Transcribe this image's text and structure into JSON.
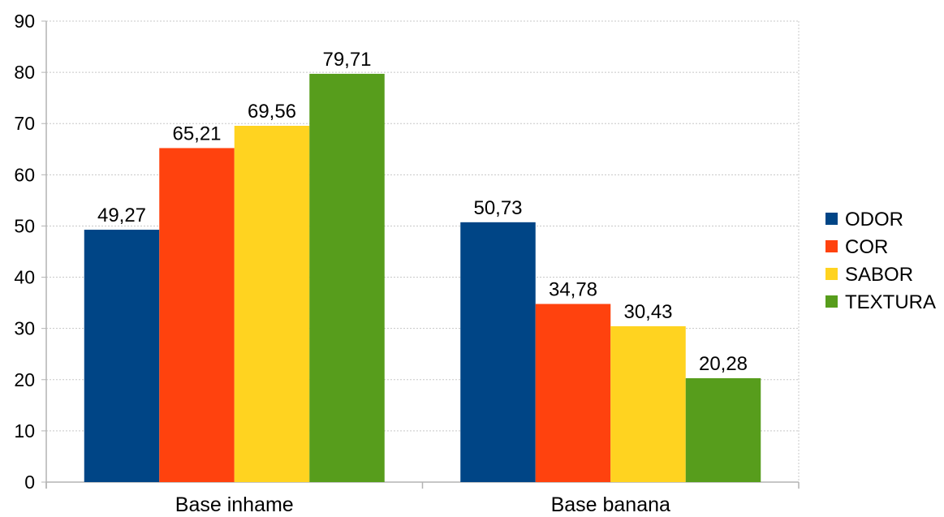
{
  "chart_data": {
    "type": "bar",
    "categories": [
      "Base inhame",
      "Base banana"
    ],
    "series": [
      {
        "name": "ODOR",
        "values": [
          49.27,
          50.73
        ],
        "labels": [
          "49,27",
          "50,73"
        ],
        "color": "#004586"
      },
      {
        "name": "COR",
        "values": [
          65.21,
          34.78
        ],
        "labels": [
          "65,21",
          "34,78"
        ],
        "color": "#ff420e"
      },
      {
        "name": "SABOR",
        "values": [
          69.56,
          30.43
        ],
        "labels": [
          "69,56",
          "30,43"
        ],
        "color": "#ffd320"
      },
      {
        "name": "TEXTURA",
        "values": [
          79.71,
          20.28
        ],
        "labels": [
          "79,71",
          "20,28"
        ],
        "color": "#579d1c"
      }
    ],
    "ylim": [
      0,
      90
    ],
    "yticks": [
      "0",
      "10",
      "20",
      "30",
      "40",
      "50",
      "60",
      "70",
      "80",
      "90"
    ],
    "grid": true,
    "legend_position": "right"
  }
}
